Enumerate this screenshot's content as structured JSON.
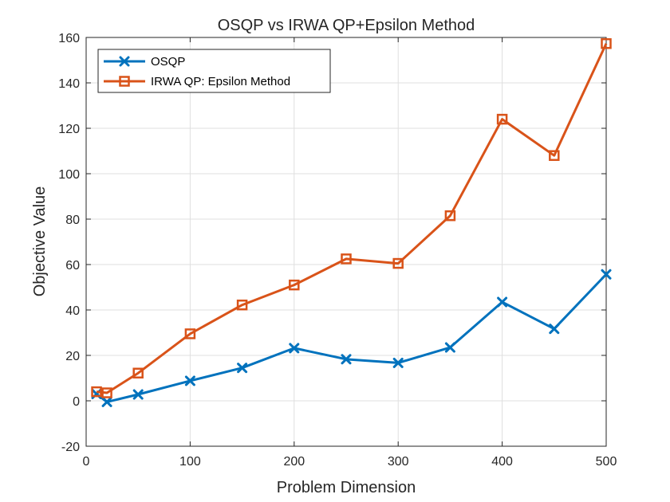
{
  "chart_data": {
    "type": "line",
    "title": "OSQP vs IRWA QP+Epsilon Method",
    "xlabel": "Problem Dimension",
    "ylabel": "Objective Value",
    "xlim": [
      0,
      500
    ],
    "ylim": [
      -20,
      160
    ],
    "xticks": [
      0,
      100,
      200,
      300,
      400,
      500
    ],
    "yticks": [
      -20,
      0,
      20,
      40,
      60,
      80,
      100,
      120,
      140,
      160
    ],
    "xtick_labels": [
      "0",
      "100",
      "200",
      "300",
      "400",
      "500"
    ],
    "ytick_labels": [
      "-20",
      "0",
      "20",
      "40",
      "60",
      "80",
      "100",
      "120",
      "140",
      "160"
    ],
    "grid": true,
    "legend_position": "top-left",
    "x": [
      10,
      20,
      50,
      100,
      150,
      200,
      250,
      300,
      350,
      400,
      450,
      500
    ],
    "series": [
      {
        "name": "OSQP",
        "color": "#0072BD",
        "marker": "x",
        "values": [
          3,
          -0.5,
          2.8,
          8.8,
          14.5,
          23.2,
          18.3,
          16.7,
          23.5,
          43.5,
          31.7,
          55.7
        ]
      },
      {
        "name": "IRWA QP: Epsilon Method",
        "color": "#D95319",
        "marker": "square",
        "values": [
          4,
          3.5,
          12.2,
          29.5,
          42.2,
          51,
          62.5,
          60.5,
          81.5,
          124,
          108,
          157.3
        ]
      }
    ]
  }
}
